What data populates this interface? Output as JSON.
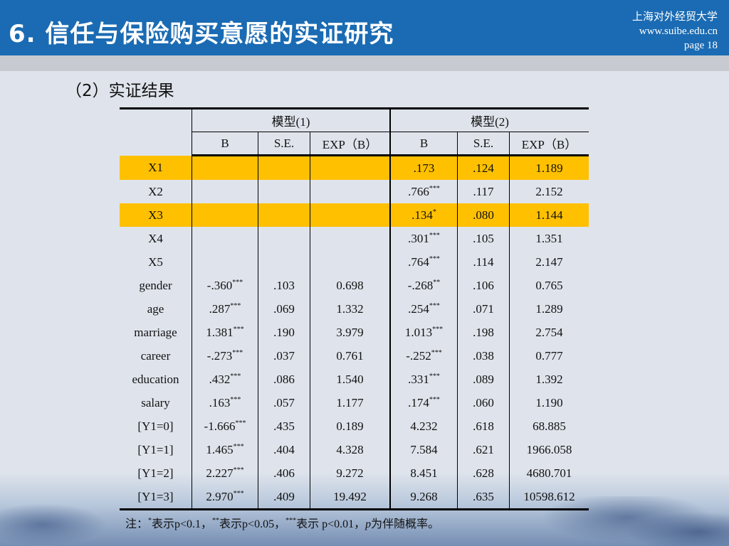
{
  "header": {
    "title": "6. 信任与保险购买意愿的实证研究",
    "university": "上海对外经贸大学",
    "website": "www.suibe.edu.cn",
    "page": "page 18"
  },
  "subtitle": "（2）实证结果",
  "table": {
    "groups": [
      "模型(1)",
      "模型(2)"
    ],
    "columns": [
      "B",
      "S.E.",
      "EXP（B）",
      "B",
      "S.E.",
      "EXP（B）"
    ],
    "rows": [
      {
        "label": "X1",
        "highlight": true,
        "cells": [
          {
            "v": ""
          },
          {
            "v": ""
          },
          {
            "v": ""
          },
          {
            "v": ".173"
          },
          {
            "v": ".124"
          },
          {
            "v": "1.189"
          }
        ]
      },
      {
        "label": "X2",
        "highlight": false,
        "cells": [
          {
            "v": ""
          },
          {
            "v": ""
          },
          {
            "v": ""
          },
          {
            "v": ".766",
            "sig": "***"
          },
          {
            "v": ".117"
          },
          {
            "v": "2.152"
          }
        ]
      },
      {
        "label": "X3",
        "highlight": true,
        "cells": [
          {
            "v": ""
          },
          {
            "v": ""
          },
          {
            "v": ""
          },
          {
            "v": ".134",
            "sig": "*"
          },
          {
            "v": ".080"
          },
          {
            "v": "1.144"
          }
        ]
      },
      {
        "label": "X4",
        "highlight": false,
        "cells": [
          {
            "v": ""
          },
          {
            "v": ""
          },
          {
            "v": ""
          },
          {
            "v": ".301",
            "sig": "***"
          },
          {
            "v": ".105"
          },
          {
            "v": "1.351"
          }
        ]
      },
      {
        "label": "X5",
        "highlight": false,
        "cells": [
          {
            "v": ""
          },
          {
            "v": ""
          },
          {
            "v": ""
          },
          {
            "v": ".764",
            "sig": "***"
          },
          {
            "v": ".114"
          },
          {
            "v": "2.147"
          }
        ]
      },
      {
        "label": "gender",
        "highlight": false,
        "cells": [
          {
            "v": "-.360",
            "sig": "***"
          },
          {
            "v": ".103"
          },
          {
            "v": "0.698"
          },
          {
            "v": "-.268",
            "sig": "**"
          },
          {
            "v": ".106"
          },
          {
            "v": "0.765"
          }
        ]
      },
      {
        "label": "age",
        "highlight": false,
        "cells": [
          {
            "v": ".287",
            "sig": "***"
          },
          {
            "v": ".069"
          },
          {
            "v": "1.332"
          },
          {
            "v": ".254",
            "sig": "***"
          },
          {
            "v": ".071"
          },
          {
            "v": "1.289"
          }
        ]
      },
      {
        "label": "marriage",
        "highlight": false,
        "cells": [
          {
            "v": "1.381",
            "sig": "***"
          },
          {
            "v": ".190"
          },
          {
            "v": "3.979"
          },
          {
            "v": "1.013",
            "sig": "***"
          },
          {
            "v": ".198"
          },
          {
            "v": "2.754"
          }
        ]
      },
      {
        "label": "career",
        "highlight": false,
        "cells": [
          {
            "v": "-.273",
            "sig": "***"
          },
          {
            "v": ".037"
          },
          {
            "v": "0.761"
          },
          {
            "v": "-.252",
            "sig": "***"
          },
          {
            "v": ".038"
          },
          {
            "v": "0.777"
          }
        ]
      },
      {
        "label": "education",
        "highlight": false,
        "cells": [
          {
            "v": ".432",
            "sig": "***"
          },
          {
            "v": ".086"
          },
          {
            "v": "1.540"
          },
          {
            "v": ".331",
            "sig": "***"
          },
          {
            "v": ".089"
          },
          {
            "v": "1.392"
          }
        ]
      },
      {
        "label": "salary",
        "highlight": false,
        "cells": [
          {
            "v": ".163",
            "sig": "***"
          },
          {
            "v": ".057"
          },
          {
            "v": "1.177"
          },
          {
            "v": ".174",
            "sig": "***"
          },
          {
            "v": ".060"
          },
          {
            "v": "1.190"
          }
        ]
      },
      {
        "label": "[Y1=0]",
        "highlight": false,
        "cells": [
          {
            "v": "-1.666",
            "sig": "***"
          },
          {
            "v": ".435"
          },
          {
            "v": "0.189"
          },
          {
            "v": "4.232"
          },
          {
            "v": ".618"
          },
          {
            "v": "68.885"
          }
        ]
      },
      {
        "label": "[Y1=1]",
        "highlight": false,
        "cells": [
          {
            "v": "1.465",
            "sig": "***"
          },
          {
            "v": ".404"
          },
          {
            "v": "4.328"
          },
          {
            "v": "7.584"
          },
          {
            "v": ".621"
          },
          {
            "v": "1966.058"
          }
        ]
      },
      {
        "label": "[Y1=2]",
        "highlight": false,
        "cells": [
          {
            "v": "2.227",
            "sig": "***"
          },
          {
            "v": ".406"
          },
          {
            "v": "9.272"
          },
          {
            "v": "8.451"
          },
          {
            "v": ".628"
          },
          {
            "v": "4680.701"
          }
        ]
      },
      {
        "label": "[Y1=3]",
        "highlight": false,
        "cells": [
          {
            "v": "2.970",
            "sig": "***"
          },
          {
            "v": ".409"
          },
          {
            "v": "19.492"
          },
          {
            "v": "9.268"
          },
          {
            "v": ".635"
          },
          {
            "v": "10598.612"
          }
        ]
      }
    ]
  },
  "note": {
    "prefix": "注：",
    "sig1": "*",
    "text1": "表示p<0.1，",
    "sig2": "**",
    "text2": "表示p<0.05，",
    "sig3": "***",
    "text3": "表示 p<0.01，",
    "p_italic": "p",
    "text4": "为伴随概率。"
  },
  "colors": {
    "header_blue": "#1a6bb3",
    "highlight": "#ffc000",
    "background": "#dfe4ec"
  }
}
